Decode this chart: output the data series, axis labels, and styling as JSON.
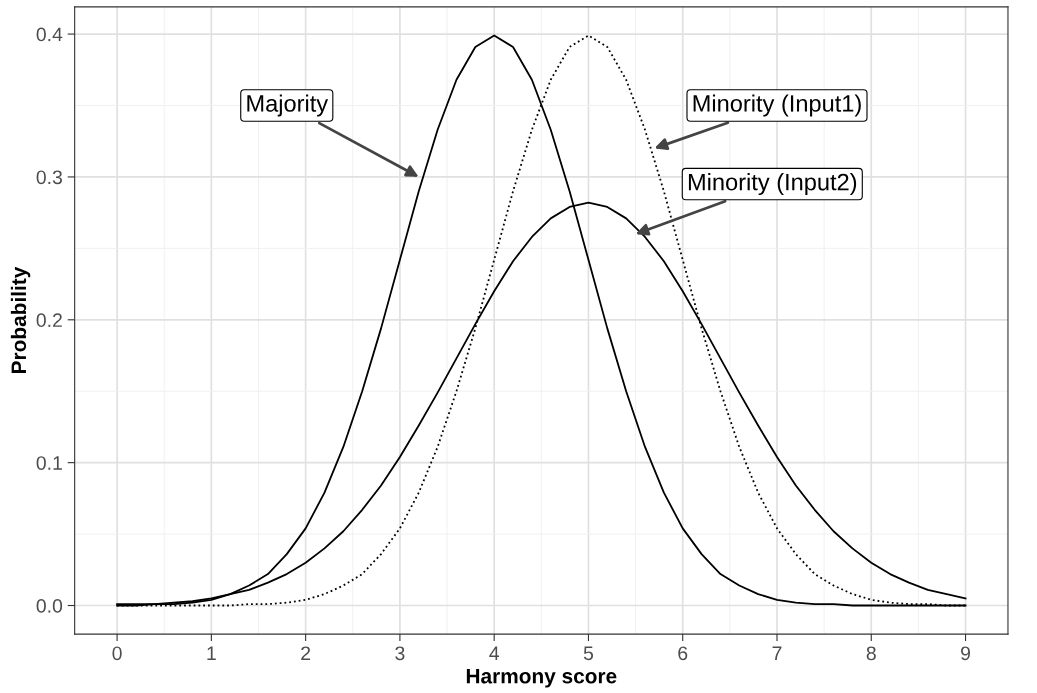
{
  "chart_data": {
    "type": "line",
    "xlabel": "Harmony score",
    "ylabel": "Probability",
    "x": [
      0,
      0.2,
      0.4,
      0.6,
      0.8,
      1,
      1.2,
      1.4,
      1.6,
      1.8,
      2,
      2.2,
      2.4,
      2.6,
      2.8,
      3,
      3.2,
      3.4,
      3.6,
      3.8,
      4,
      4.2,
      4.4,
      4.6,
      4.8,
      5,
      5.2,
      5.4,
      5.6,
      5.8,
      6,
      6.2,
      6.4,
      6.6,
      6.8,
      7,
      7.2,
      7.4,
      7.6,
      7.8,
      8,
      8.2,
      8.4,
      8.6,
      8.8,
      9
    ],
    "series": [
      {
        "color": "#000000",
        "line_style": "solid",
        "values": [
          0,
          0,
          0.001,
          0.001,
          0.002,
          0.004,
          0.008,
          0.014,
          0.022,
          0.036,
          0.054,
          0.079,
          0.111,
          0.15,
          0.194,
          0.242,
          0.29,
          0.333,
          0.368,
          0.391,
          0.399,
          0.391,
          0.368,
          0.333,
          0.29,
          0.242,
          0.194,
          0.15,
          0.111,
          0.079,
          0.054,
          0.036,
          0.022,
          0.014,
          0.008,
          0.004,
          0.002,
          0.001,
          0.001,
          0,
          0,
          0,
          0,
          0,
          0,
          0
        ]
      },
      {
        "color": "#000000",
        "line_style": "dotted",
        "values": [
          0,
          0,
          0,
          0,
          0,
          0,
          0,
          0.001,
          0.001,
          0.002,
          0.004,
          0.008,
          0.014,
          0.022,
          0.036,
          0.054,
          0.079,
          0.111,
          0.15,
          0.194,
          0.242,
          0.29,
          0.333,
          0.368,
          0.391,
          0.399,
          0.391,
          0.368,
          0.333,
          0.29,
          0.242,
          0.194,
          0.15,
          0.111,
          0.079,
          0.054,
          0.036,
          0.022,
          0.014,
          0.008,
          0.004,
          0.002,
          0.001,
          0.001,
          0,
          0
        ]
      },
      {
        "color": "#000000",
        "line_style": "solid",
        "values": [
          0.001,
          0.001,
          0.001,
          0.002,
          0.003,
          0.005,
          0.008,
          0.011,
          0.016,
          0.022,
          0.03,
          0.04,
          0.052,
          0.067,
          0.084,
          0.104,
          0.126,
          0.149,
          0.173,
          0.197,
          0.22,
          0.241,
          0.258,
          0.271,
          0.279,
          0.282,
          0.279,
          0.271,
          0.258,
          0.241,
          0.22,
          0.197,
          0.173,
          0.149,
          0.126,
          0.104,
          0.084,
          0.067,
          0.052,
          0.04,
          0.03,
          0.022,
          0.016,
          0.011,
          0.008,
          0.005
        ]
      }
    ],
    "annotations": [
      {
        "text": "Majority",
        "x": 3.2,
        "y": 0.3
      },
      {
        "text": "Minority (Input1)",
        "x": 5.7,
        "y": 0.32
      },
      {
        "text": "Minority (Input2)",
        "x": 5.5,
        "y": 0.26
      }
    ],
    "xlim": [
      -0.45,
      9.45
    ],
    "ylim": [
      -0.02,
      0.419
    ],
    "xticks": [
      0,
      1,
      2,
      3,
      4,
      5,
      6,
      7,
      8,
      9
    ],
    "yticks": [
      {
        "value": 0,
        "label": "0.0"
      },
      {
        "value": 0.1,
        "label": "0.1"
      },
      {
        "value": 0.2,
        "label": "0.2"
      },
      {
        "value": 0.3,
        "label": "0.3"
      },
      {
        "value": 0.4,
        "label": "0.4"
      }
    ],
    "grid": true,
    "marker": "none"
  }
}
